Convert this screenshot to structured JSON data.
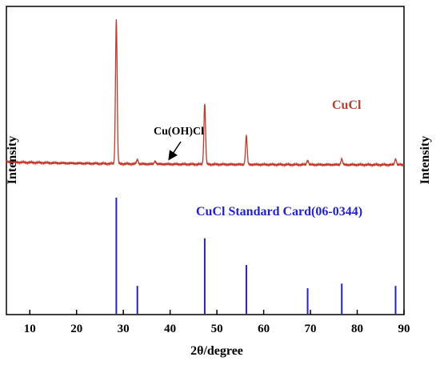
{
  "chart_data": {
    "type": "line",
    "xlabel": "2θ/degree",
    "ylabel_left": "Intensity",
    "ylabel_right": "Intensity",
    "xlim": [
      5,
      90
    ],
    "xticks": [
      10,
      20,
      30,
      40,
      50,
      60,
      70,
      80,
      90
    ],
    "grid": false,
    "colors": {
      "measured": "#c0392b",
      "reference": "#2222cc",
      "axis": "#000000"
    },
    "measured": {
      "name": "CuCl",
      "baseline": 0.02,
      "peaks": [
        {
          "x": 28.5,
          "y": 1.0
        },
        {
          "x": 33.0,
          "y": 0.03
        },
        {
          "x": 36.8,
          "y": 0.02
        },
        {
          "x": 47.4,
          "y": 0.42
        },
        {
          "x": 56.3,
          "y": 0.2
        },
        {
          "x": 69.4,
          "y": 0.03
        },
        {
          "x": 76.7,
          "y": 0.04
        },
        {
          "x": 88.2,
          "y": 0.04
        }
      ]
    },
    "reference": {
      "name": "CuCl Standard Card(06-0344)",
      "lines": [
        {
          "x": 28.5,
          "y": 1.0
        },
        {
          "x": 33.0,
          "y": 0.24
        },
        {
          "x": 47.4,
          "y": 0.65
        },
        {
          "x": 56.3,
          "y": 0.42
        },
        {
          "x": 69.4,
          "y": 0.22
        },
        {
          "x": 76.7,
          "y": 0.26
        },
        {
          "x": 88.2,
          "y": 0.24
        }
      ]
    },
    "annotation": {
      "text": "Cu(OH)Cl",
      "x": 36.8
    }
  }
}
